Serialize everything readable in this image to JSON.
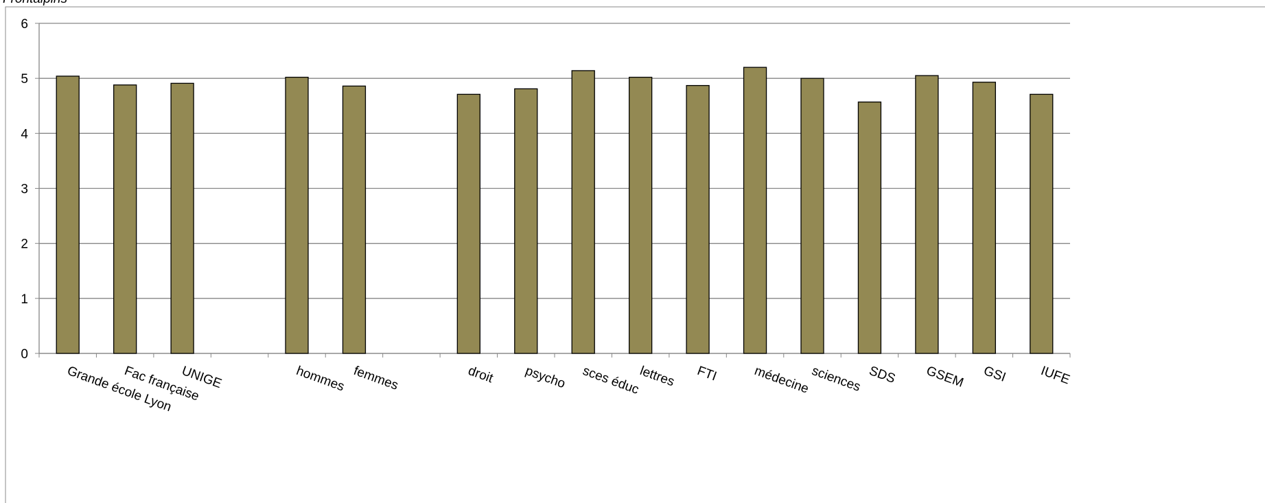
{
  "chart_data": {
    "type": "bar",
    "title": "Frontalpins",
    "categories": [
      "Grande école Lyon",
      "Fac française",
      "UNIGE",
      null,
      "hommes",
      "femmes",
      null,
      "droit",
      "psycho",
      "sces éduc",
      "lettres",
      "FTI",
      "médecine",
      "sciences",
      "SDS",
      "GSEM",
      "GSI",
      "IUFE"
    ],
    "values": [
      5.04,
      4.88,
      4.91,
      null,
      5.02,
      4.86,
      null,
      4.71,
      4.81,
      5.14,
      5.02,
      4.87,
      5.2,
      5.0,
      4.57,
      5.05,
      4.93,
      4.71
    ],
    "color": "#938953",
    "ylim": [
      0,
      6
    ],
    "yticks": [
      0,
      1,
      2,
      3,
      4,
      5,
      6
    ],
    "grid": true
  }
}
